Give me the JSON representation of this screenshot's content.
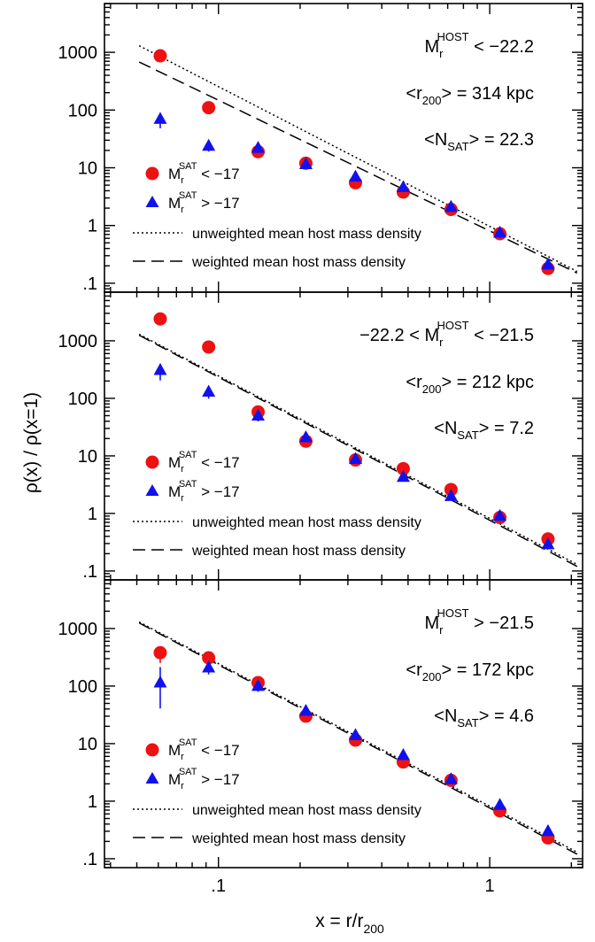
{
  "figure": {
    "ylabel": "ρ(x) / ρ(x=1)",
    "xlabel_main": "x = r/r",
    "xlabel_sub": "200",
    "x_tick_labels": [
      ".1",
      "1"
    ],
    "y_tick_labels": [
      "1000",
      "100",
      "10",
      "1",
      ".1"
    ]
  },
  "chart_data": [
    {
      "type": "scatter",
      "panel": "top",
      "xscale": "log",
      "yscale": "log",
      "xlim": [
        0.038,
        2.2
      ],
      "ylim": [
        0.07,
        7000
      ],
      "annotations": {
        "host_main": "M",
        "host_sub": "r",
        "host_sup": "HOST",
        "host_rest": " < −22.2",
        "r200_pre": "<r",
        "r200_sub": "200",
        "r200_rest": "> = 314 kpc",
        "nsat_pre": "<N",
        "nsat_sub": "SAT",
        "nsat_rest": "> = 22.3"
      },
      "legend": {
        "bright_main": "M",
        "bright_sub": "r",
        "bright_sup": "SAT",
        "bright_rest": " < −17",
        "faint_main": "M",
        "faint_sub": "r",
        "faint_sup": "SAT",
        "faint_rest": " > −17",
        "dotted": "unweighted mean host mass density",
        "dashed": "weighted mean host mass density"
      },
      "series": [
        {
          "name": "bright",
          "marker": "circle",
          "color": "#ee1111",
          "x": [
            0.061,
            0.092,
            0.14,
            0.21,
            0.32,
            0.48,
            0.72,
            1.09,
            1.64
          ],
          "y": [
            870,
            110,
            19,
            12,
            5.5,
            3.8,
            1.9,
            0.72,
            0.18
          ],
          "err": [
            0,
            0,
            0,
            0,
            0,
            0,
            0,
            0,
            0
          ]
        },
        {
          "name": "faint",
          "marker": "triangle",
          "color": "#1111ee",
          "x": [
            0.061,
            0.092,
            0.14,
            0.21,
            0.32,
            0.48,
            0.72,
            1.09,
            1.64
          ],
          "y": [
            70,
            24,
            22,
            11.5,
            7,
            4.6,
            2.1,
            0.75,
            0.21
          ],
          "err": [
            0.16,
            0.1,
            0,
            0,
            0,
            0,
            0,
            0,
            0
          ]
        }
      ],
      "lines": [
        {
          "name": "unweighted",
          "style": "dotted",
          "x": [
            0.051,
            2.1
          ],
          "y": [
            1300,
            0.16
          ]
        },
        {
          "name": "weighted",
          "style": "dashed",
          "x": [
            0.051,
            2.1
          ],
          "y": [
            680,
            0.15
          ]
        }
      ]
    },
    {
      "type": "scatter",
      "panel": "middle",
      "xscale": "log",
      "yscale": "log",
      "xlim": [
        0.038,
        2.2
      ],
      "ylim": [
        0.07,
        7000
      ],
      "annotations": {
        "host_main": "−22.2 < M",
        "host_sub": "r",
        "host_sup": "HOST",
        "host_rest": " < −21.5",
        "r200_pre": "<r",
        "r200_sub": "200",
        "r200_rest": "> = 212 kpc",
        "nsat_pre": "<N",
        "nsat_sub": "SAT",
        "nsat_rest": "> = 7.2"
      },
      "legend": {
        "bright_main": "M",
        "bright_sub": "r",
        "bright_sup": "SAT",
        "bright_rest": " < −17",
        "faint_main": "M",
        "faint_sub": "r",
        "faint_sup": "SAT",
        "faint_rest": " > −17",
        "dotted": "unweighted mean host mass density",
        "dashed": "weighted mean host mass density"
      },
      "series": [
        {
          "name": "bright",
          "marker": "circle",
          "color": "#ee1111",
          "x": [
            0.061,
            0.092,
            0.14,
            0.21,
            0.32,
            0.48,
            0.72,
            1.09,
            1.64
          ],
          "y": [
            2400,
            780,
            58,
            18,
            8.5,
            6,
            2.6,
            0.85,
            0.36
          ],
          "err": [
            0,
            0,
            0,
            0,
            0,
            0,
            0,
            0,
            0
          ]
        },
        {
          "name": "faint",
          "marker": "triangle",
          "color": "#1111ee",
          "x": [
            0.061,
            0.092,
            0.14,
            0.21,
            0.32,
            0.48,
            0.72,
            1.09,
            1.64
          ],
          "y": [
            310,
            130,
            50,
            21,
            8.8,
            4.3,
            2,
            0.9,
            0.29
          ],
          "err": [
            0.18,
            0.12,
            0.1,
            0,
            0,
            0,
            0,
            0,
            0
          ]
        }
      ],
      "lines": [
        {
          "name": "unweighted",
          "style": "dotted",
          "x": [
            0.051,
            2.1
          ],
          "y": [
            1300,
            0.13
          ]
        },
        {
          "name": "weighted",
          "style": "dashed",
          "x": [
            0.051,
            2.1
          ],
          "y": [
            1250,
            0.12
          ]
        }
      ]
    },
    {
      "type": "scatter",
      "panel": "bottom",
      "xscale": "log",
      "yscale": "log",
      "xlim": [
        0.038,
        2.2
      ],
      "ylim": [
        0.07,
        7000
      ],
      "annotations": {
        "host_main": "M",
        "host_sub": "r",
        "host_sup": "HOST",
        "host_rest": " > −21.5",
        "r200_pre": "<r",
        "r200_sub": "200",
        "r200_rest": "> = 172 kpc",
        "nsat_pre": "<N",
        "nsat_sub": "SAT",
        "nsat_rest": "> = 4.6"
      },
      "legend": {
        "bright_main": "M",
        "bright_sub": "r",
        "bright_sup": "SAT",
        "bright_rest": " < −17",
        "faint_main": "M",
        "faint_sub": "r",
        "faint_sup": "SAT",
        "faint_rest": " > −17",
        "dotted": "unweighted mean host mass density",
        "dashed": "weighted mean host mass density"
      },
      "series": [
        {
          "name": "bright",
          "marker": "circle",
          "color": "#ee1111",
          "x": [
            0.061,
            0.092,
            0.14,
            0.21,
            0.32,
            0.48,
            0.72,
            1.09,
            1.64
          ],
          "y": [
            380,
            310,
            115,
            30,
            11.5,
            4.8,
            2.3,
            0.68,
            0.23
          ],
          "err": [
            0.18,
            0.08,
            0,
            0,
            0,
            0,
            0,
            0,
            0
          ]
        },
        {
          "name": "faint",
          "marker": "triangle",
          "color": "#1111ee",
          "x": [
            0.061,
            0.092,
            0.14,
            0.21,
            0.32,
            0.48,
            0.72,
            1.09,
            1.64
          ],
          "y": [
            115,
            210,
            100,
            37,
            14,
            6.3,
            2.4,
            0.86,
            0.3
          ],
          "err": [
            0.45,
            0.12,
            0.1,
            0,
            0,
            0,
            0,
            0,
            0
          ]
        }
      ],
      "lines": [
        {
          "name": "unweighted",
          "style": "dotted",
          "x": [
            0.051,
            2.1
          ],
          "y": [
            1300,
            0.13
          ]
        },
        {
          "name": "weighted",
          "style": "dashed",
          "x": [
            0.051,
            2.1
          ],
          "y": [
            1250,
            0.12
          ]
        }
      ]
    }
  ]
}
